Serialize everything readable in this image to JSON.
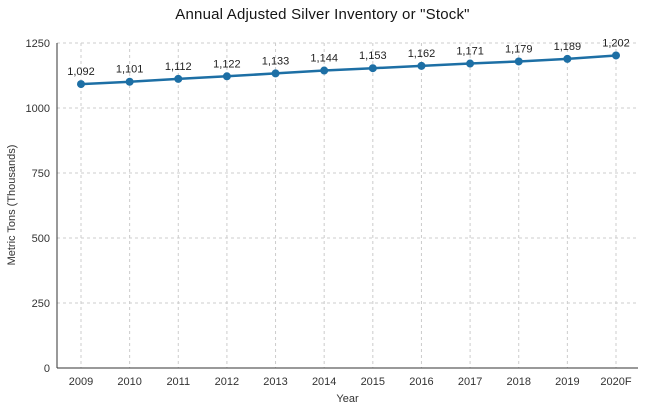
{
  "title": "Annual Adjusted Silver Inventory or \"Stock\"",
  "chart_data": {
    "type": "line",
    "title": "Annual Adjusted Silver Inventory or \"Stock\"",
    "xlabel": "Year",
    "ylabel": "Metric Tons (Thousands)",
    "categories": [
      "2009",
      "2010",
      "2011",
      "2012",
      "2013",
      "2014",
      "2015",
      "2016",
      "2017",
      "2018",
      "2019",
      "2020F"
    ],
    "values": [
      1092,
      1101,
      1112,
      1122,
      1133,
      1144,
      1153,
      1162,
      1171,
      1179,
      1189,
      1202
    ],
    "point_labels": [
      "1,092",
      "1,101",
      "1,112",
      "1,122",
      "1,133",
      "1,144",
      "1,153",
      "1,162",
      "1,171",
      "1,179",
      "1,189",
      "1,202"
    ],
    "ylim": [
      0,
      1250
    ],
    "yticks": [
      0,
      250,
      500,
      750,
      1000,
      1250
    ],
    "grid": "dashed",
    "legend": "none",
    "marker": "circle"
  },
  "colors": {
    "line": "#1d6fa5",
    "marker": "#1d6fa5",
    "grid": "#cccccc",
    "axis": "#333333",
    "tick_text": "#333333",
    "data_label_text": "#222222",
    "title_text": "#141414",
    "background": "#ffffff"
  }
}
